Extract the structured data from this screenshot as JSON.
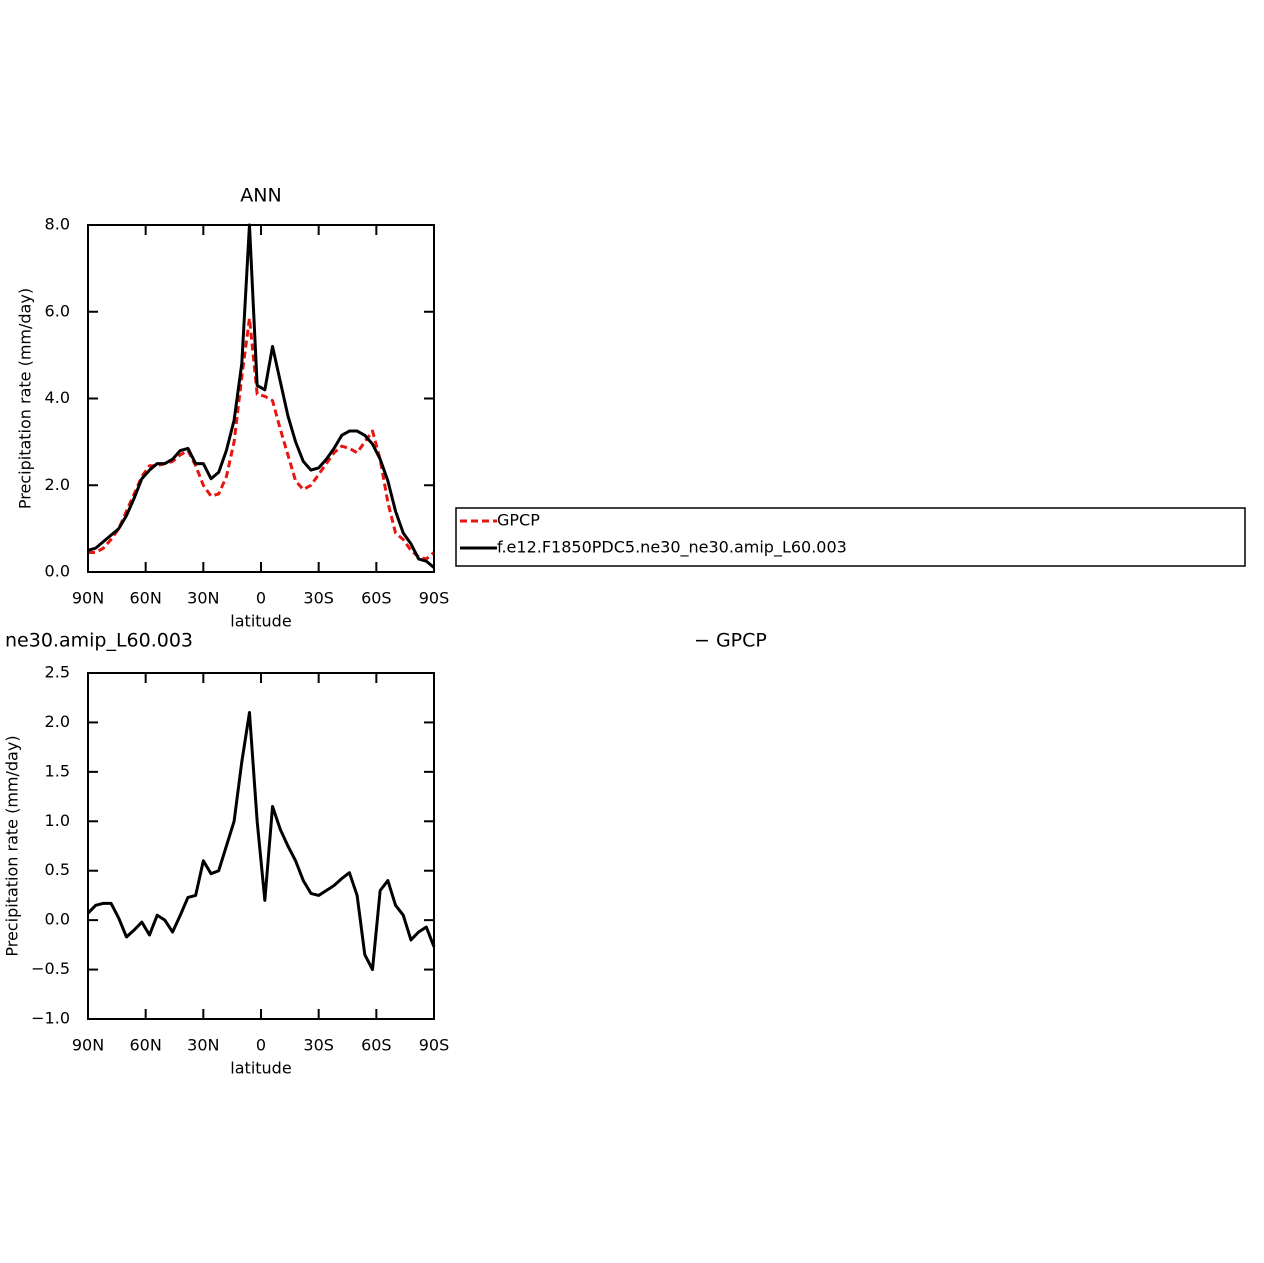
{
  "chart_data": [
    {
      "type": "line",
      "title": "ANN",
      "xlabel": "latitude",
      "ylabel": "Precipitation rate (mm/day)",
      "x": [
        90,
        86,
        82,
        78,
        74,
        70,
        66,
        62,
        58,
        54,
        50,
        46,
        42,
        38,
        34,
        30,
        26,
        22,
        18,
        14,
        10,
        6,
        2,
        -2,
        -6,
        -10,
        -14,
        -18,
        -22,
        -26,
        -30,
        -34,
        -38,
        -42,
        -46,
        -50,
        -54,
        -58,
        -62,
        -66,
        -70,
        -74,
        -78,
        -82,
        -86,
        -90
      ],
      "xlim": [
        90,
        -90
      ],
      "xticks": [
        {
          "value": 90,
          "label": "90N"
        },
        {
          "value": 60,
          "label": "60N"
        },
        {
          "value": 30,
          "label": "30N"
        },
        0,
        {
          "value": -30,
          "label": "30S"
        },
        {
          "value": -60,
          "label": "60S"
        },
        {
          "value": -90,
          "label": "90S"
        }
      ],
      "ylim": [
        0,
        8
      ],
      "yticks": [
        {
          "value": 0,
          "label": "0.0"
        },
        {
          "value": 2,
          "label": "2.0"
        },
        {
          "value": 4,
          "label": "4.0"
        },
        {
          "value": 6,
          "label": "6.0"
        },
        {
          "value": 8,
          "label": "8.0"
        }
      ],
      "legend": "right",
      "series": [
        {
          "name": "GPCP",
          "color": "#e8150f",
          "dash": true,
          "values": [
            0.45,
            0.45,
            0.55,
            0.75,
            1.0,
            1.4,
            1.8,
            2.2,
            2.45,
            2.45,
            2.5,
            2.55,
            2.7,
            2.8,
            2.45,
            2.0,
            1.75,
            1.8,
            2.2,
            3.0,
            4.5,
            5.85,
            4.1,
            4.05,
            3.95,
            3.3,
            2.7,
            2.1,
            1.9,
            2.0,
            2.25,
            2.5,
            2.75,
            2.9,
            2.85,
            2.75,
            3.0,
            3.25,
            2.6,
            1.6,
            0.9,
            0.75,
            0.5,
            0.35,
            0.3,
            0.45
          ]
        },
        {
          "name": "f.e12.F1850PDC5.ne30_ne30.amip_L60.003",
          "color": "#000000",
          "dash": false,
          "values": [
            0.5,
            0.55,
            0.7,
            0.85,
            1.0,
            1.3,
            1.7,
            2.15,
            2.35,
            2.5,
            2.5,
            2.6,
            2.8,
            2.85,
            2.5,
            2.5,
            2.15,
            2.3,
            2.8,
            3.5,
            4.8,
            8.0,
            4.3,
            4.2,
            5.2,
            4.4,
            3.6,
            3.0,
            2.55,
            2.35,
            2.4,
            2.6,
            2.85,
            3.15,
            3.25,
            3.25,
            3.15,
            2.95,
            2.6,
            2.1,
            1.4,
            0.9,
            0.65,
            0.3,
            0.25,
            0.1
          ]
        }
      ]
    },
    {
      "type": "line",
      "left_title": "ne30.amip_L60.003",
      "right_title": "− GPCP",
      "xlabel": "latitude",
      "ylabel": "Precipitation rate (mm/day)",
      "x": [
        90,
        86,
        82,
        78,
        74,
        70,
        66,
        62,
        58,
        54,
        50,
        46,
        42,
        38,
        34,
        30,
        26,
        22,
        18,
        14,
        10,
        6,
        2,
        -2,
        -6,
        -10,
        -14,
        -18,
        -22,
        -26,
        -30,
        -34,
        -38,
        -42,
        -46,
        -50,
        -54,
        -58,
        -62,
        -66,
        -70,
        -74,
        -78,
        -82,
        -86,
        -90
      ],
      "xlim": [
        90,
        -90
      ],
      "xticks": [
        {
          "value": 90,
          "label": "90N"
        },
        {
          "value": 60,
          "label": "60N"
        },
        {
          "value": 30,
          "label": "30N"
        },
        0,
        {
          "value": -30,
          "label": "30S"
        },
        {
          "value": -60,
          "label": "60S"
        },
        {
          "value": -90,
          "label": "90S"
        }
      ],
      "ylim": [
        -1,
        2.5
      ],
      "yticks": [
        {
          "value": -1,
          "label": "−1.0"
        },
        {
          "value": -0.5,
          "label": "−0.5"
        },
        {
          "value": 0,
          "label": "0.0"
        },
        0.5,
        {
          "value": 1,
          "label": "1.0"
        },
        1.5,
        {
          "value": 2,
          "label": "2.0"
        },
        2.5
      ],
      "series": [
        {
          "color": "#000000",
          "dash": false,
          "values": [
            0.07,
            0.15,
            0.17,
            0.17,
            0.02,
            -0.17,
            -0.1,
            -0.02,
            -0.15,
            0.05,
            0.0,
            -0.12,
            0.05,
            0.23,
            0.25,
            0.6,
            0.47,
            0.5,
            0.75,
            1.0,
            1.6,
            2.1,
            1.0,
            0.2,
            1.15,
            0.92,
            0.75,
            0.6,
            0.4,
            0.27,
            0.25,
            0.3,
            0.35,
            0.42,
            0.48,
            0.25,
            -0.35,
            -0.5,
            0.3,
            0.4,
            0.15,
            0.05,
            -0.2,
            -0.12,
            -0.07,
            -0.27
          ]
        }
      ]
    }
  ]
}
